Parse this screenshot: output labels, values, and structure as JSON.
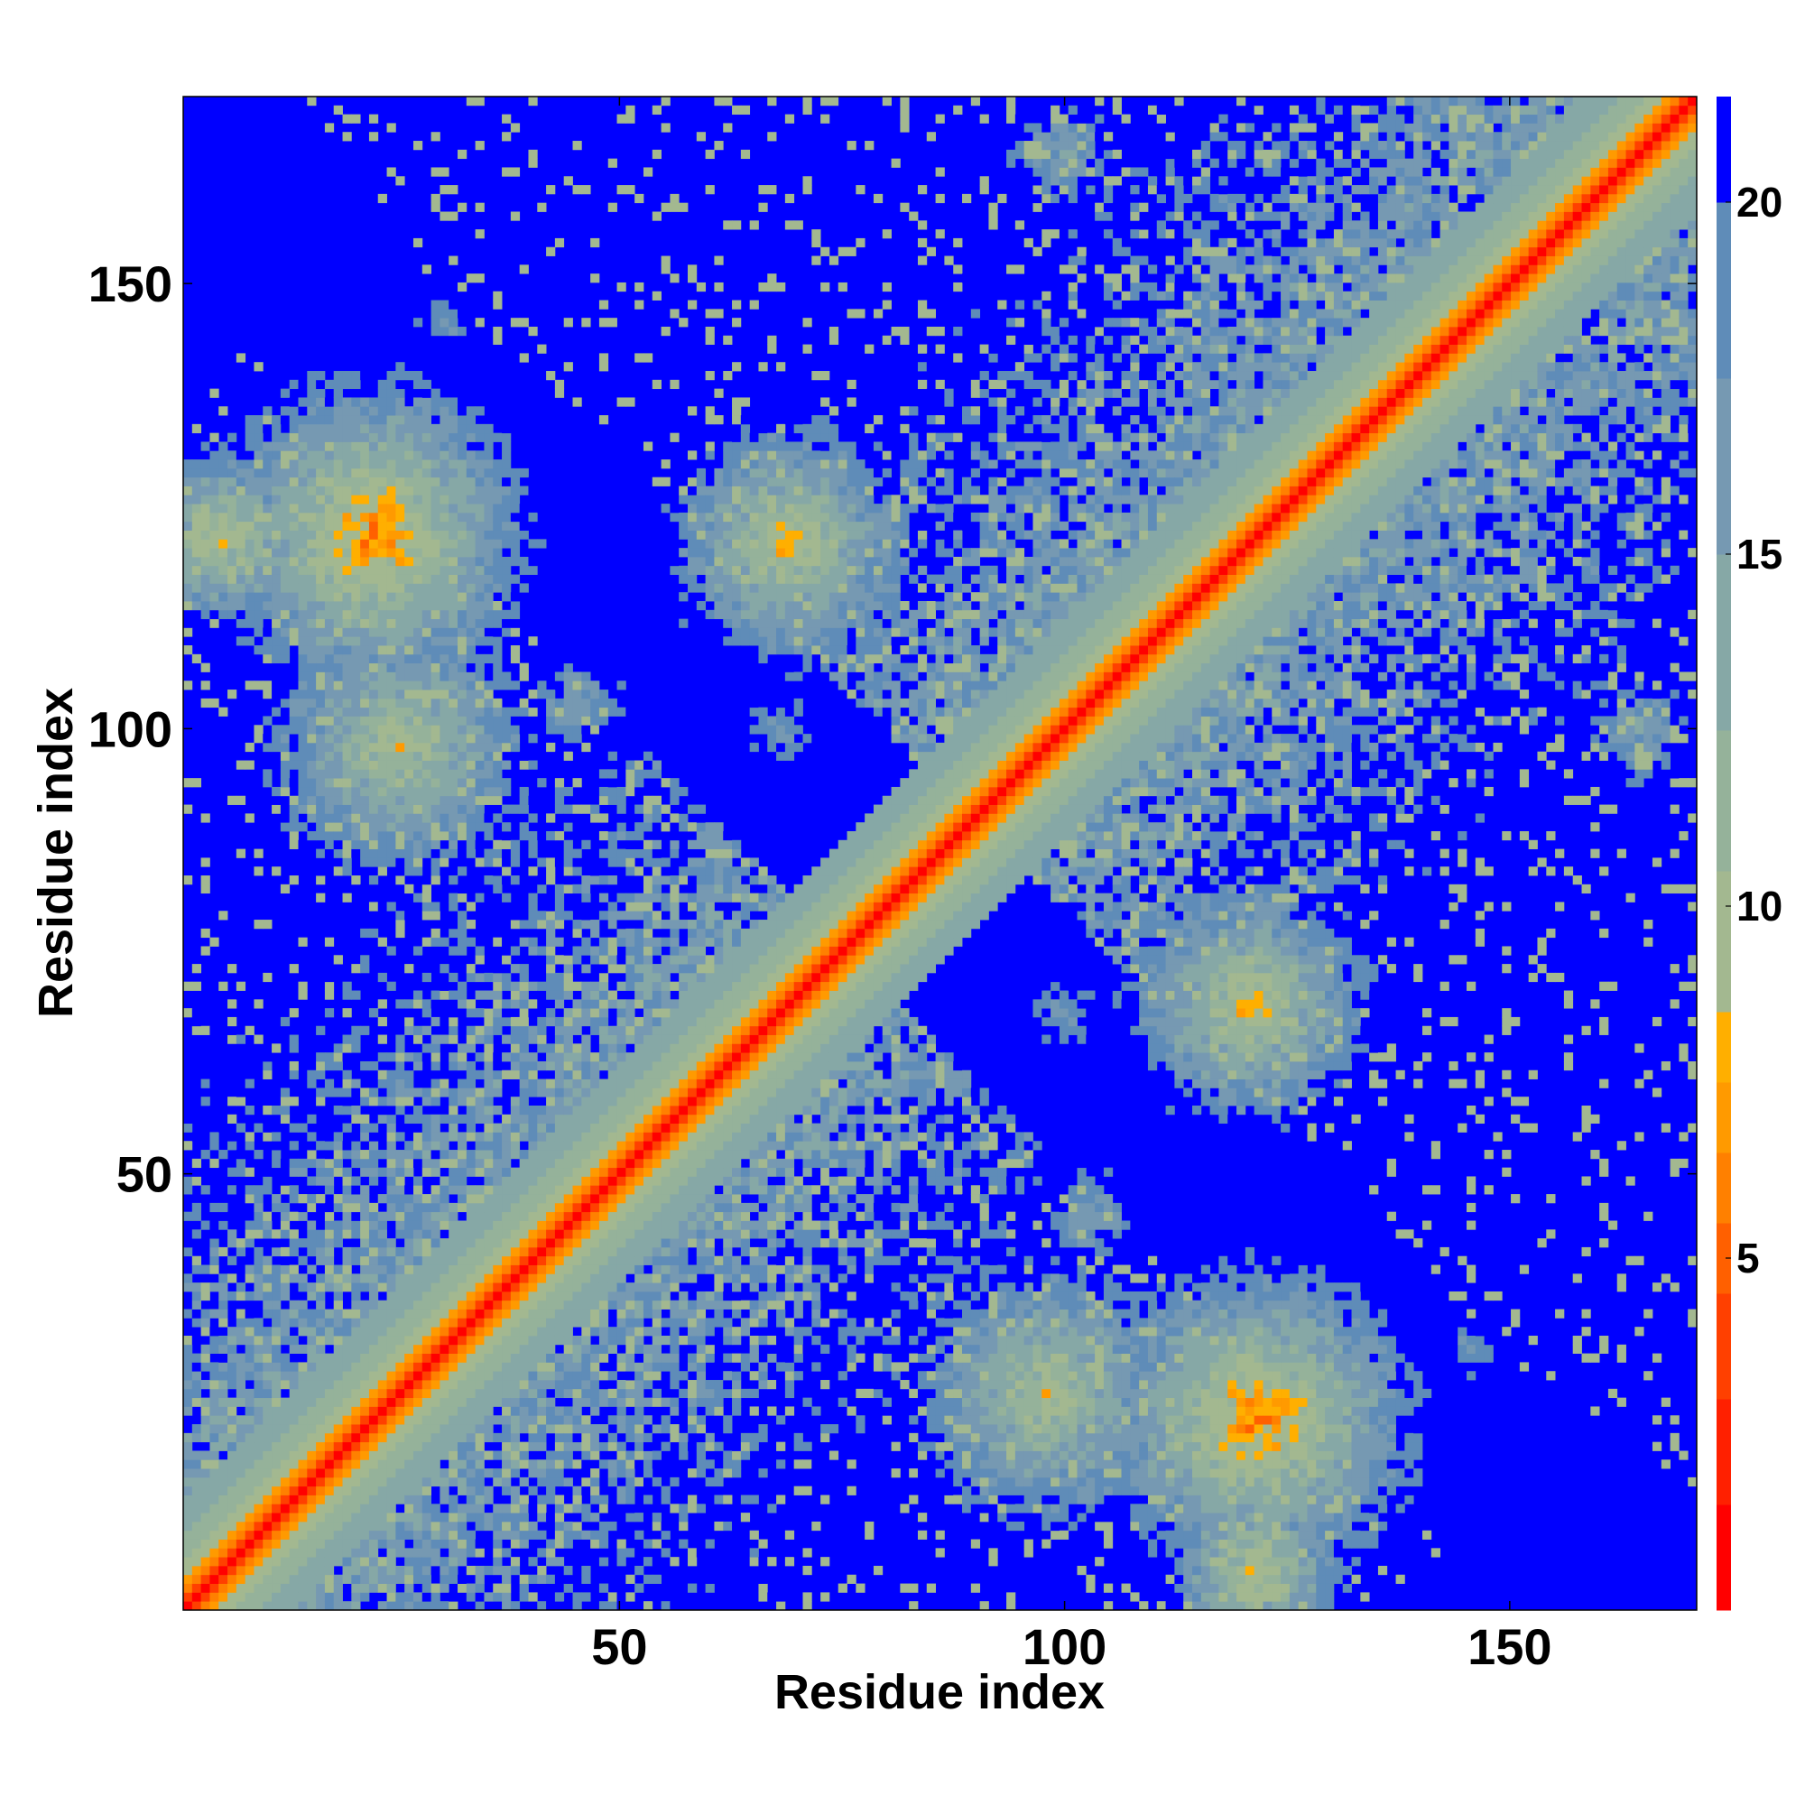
{
  "chart_data": {
    "type": "heatmap",
    "title": "",
    "xlabel": "Residue index",
    "ylabel": "Residue index",
    "n_residues": 171,
    "xlim": [
      1,
      171
    ],
    "ylim": [
      1,
      171
    ],
    "xticks": [
      50,
      100,
      150
    ],
    "yticks": [
      50,
      100,
      150
    ],
    "colorbar": {
      "range": [
        0,
        21.5
      ],
      "ticks": [
        5,
        10,
        15,
        20
      ],
      "levels": [
        {
          "max": 1.5,
          "color": "#ff0000"
        },
        {
          "max": 3,
          "color": "#ff2000"
        },
        {
          "max": 4.5,
          "color": "#ff4000"
        },
        {
          "max": 5.5,
          "color": "#ff6000"
        },
        {
          "max": 6.5,
          "color": "#ff8000"
        },
        {
          "max": 7.5,
          "color": "#ff9a00"
        },
        {
          "max": 8.5,
          "color": "#ffaf00"
        },
        {
          "max": 10.5,
          "color": "#a3b890"
        },
        {
          "max": 12.5,
          "color": "#95b29a"
        },
        {
          "max": 15,
          "color": "#86a8a6"
        },
        {
          "max": 17.5,
          "color": "#7699b2"
        },
        {
          "max": 20,
          "color": "#5f8cb8"
        },
        {
          "max": 21.5,
          "color": "#0000ff"
        }
      ]
    },
    "background_value": 21.5,
    "structure": {
      "domains": [
        [
          1,
          75
        ],
        [
          90,
          171
        ]
      ],
      "contact_blocks": [
        {
          "center": [
            5,
            122
          ],
          "radius": 9,
          "peak": 6
        },
        {
          "center": [
            22,
            122
          ],
          "radius": 14,
          "peak": 4
        },
        {
          "center": [
            25,
            98
          ],
          "radius": 14,
          "peak": 7
        },
        {
          "center": [
            69,
            121
          ],
          "radius": 12,
          "peak": 6
        },
        {
          "center": [
            45,
            103
          ],
          "radius": 9,
          "peak": 13
        },
        {
          "center": [
            68,
            100
          ],
          "radius": 8,
          "peak": 14
        },
        {
          "center": [
            30,
            146
          ],
          "radius": 8,
          "peak": 15
        },
        {
          "center": [
            93,
            32
          ],
          "radius": 13,
          "peak": 6
        },
        {
          "center": [
            120,
            22
          ],
          "radius": 13,
          "peak": 4
        },
        {
          "center": [
            123,
            69
          ],
          "radius": 10,
          "peak": 6
        },
        {
          "center": [
            99,
            44
          ],
          "radius": 8,
          "peak": 14
        },
        {
          "center": [
            120,
            46
          ],
          "radius": 8,
          "peak": 14
        },
        {
          "center": [
            122,
            5
          ],
          "radius": 9,
          "peak": 7
        },
        {
          "center": [
            100,
            4
          ],
          "radius": 7,
          "peak": 9
        },
        {
          "center": [
            101,
            67
          ],
          "radius": 9,
          "peak": 14
        },
        {
          "center": [
            146,
            30
          ],
          "radius": 8,
          "peak": 15
        },
        {
          "center": [
            100,
            165
          ],
          "radius": 10,
          "peak": 13
        },
        {
          "center": [
            165,
            100
          ],
          "radius": 10,
          "peak": 13
        }
      ]
    }
  }
}
